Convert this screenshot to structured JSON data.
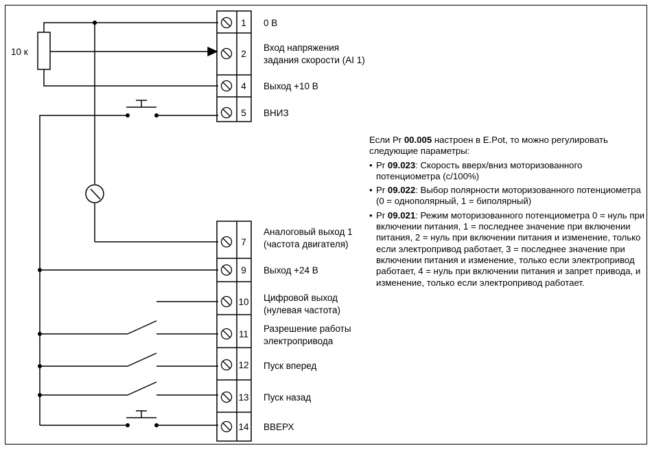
{
  "resistor_label": "10 к",
  "terminals": [
    {
      "number": "1",
      "label": [
        "0 В"
      ]
    },
    {
      "number": "2",
      "label": [
        "Вход напряжения",
        "задания скорости (AI 1)"
      ]
    },
    {
      "number": "4",
      "label": [
        "Выход +10 В"
      ]
    },
    {
      "number": "5",
      "label": [
        "ВНИЗ"
      ]
    },
    {
      "number": "7",
      "label": [
        "Аналоговый выход 1",
        "(частота двигателя)"
      ]
    },
    {
      "number": "9",
      "label": [
        "Выход +24 В"
      ]
    },
    {
      "number": "10",
      "label": [
        "Цифровой выход",
        "(нулевая частота)"
      ]
    },
    {
      "number": "11",
      "label": [
        "Разрешение работы",
        "электропривода"
      ]
    },
    {
      "number": "12",
      "label": [
        "Пуск вперед"
      ]
    },
    {
      "number": "13",
      "label": [
        "Пуск назад"
      ]
    },
    {
      "number": "14",
      "label": [
        "ВВЕРХ"
      ]
    }
  ],
  "note": {
    "intro_prefix": "Если Pr ",
    "intro_param": "00.005",
    "intro_suffix": " настроен в E.Pot, то можно регулировать следующие параметры:",
    "items": [
      {
        "prefix": "Pr ",
        "param": "09.023",
        "text": ": Скорость вверх/вниз моторизованного потенциометра (с/100%)"
      },
      {
        "prefix": "Pr ",
        "param": "09.022",
        "text": ": Выбор полярности моторизованного потенциометра (0 = однополярный, 1 = биполярный)"
      },
      {
        "prefix": "Pr ",
        "param": "09.021",
        "text": ": Режим моторизованного потенциометра 0 = нуль при включении питания, 1 = последнее значение при включении питания, 2 = нуль при включении питания и изменение, только если электропривод работает, 3 = последнее значение при включении питания и изменение, только если электропривод работает, 4 = нуль при включении питания и запрет привода, и изменение, только если электропривод работает."
      }
    ]
  }
}
